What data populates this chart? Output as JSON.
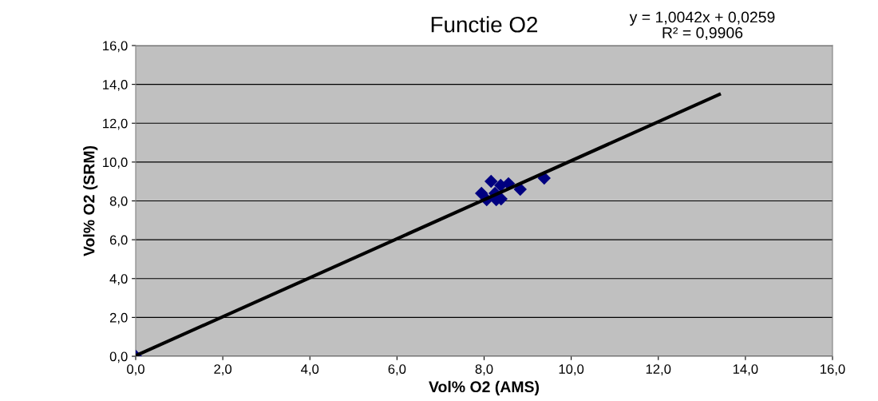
{
  "chart_data": {
    "type": "scatter",
    "title": "Functie O2",
    "xlabel": "Vol% O2 (AMS)",
    "ylabel": "Vol% O2 (SRM)",
    "annotations": [
      "y = 1,0042x + 0,0259\nR² = 0,9906"
    ],
    "series": [
      {
        "color": "#000080",
        "marker": "diamond",
        "x": [
          0.0,
          8.16,
          7.94,
          8.38,
          8.56,
          8.83,
          9.38,
          8.06,
          8.28,
          8.39,
          8.25
        ],
        "values": [
          0.0,
          9.01,
          8.39,
          8.8,
          8.89,
          8.6,
          9.17,
          8.06,
          8.06,
          8.1,
          8.39
        ]
      },
      {
        "type": "line",
        "color": "#000000",
        "x": [
          0.0,
          13.4
        ],
        "values": [
          0.03,
          13.48
        ]
      }
    ],
    "xlim": [
      0,
      16
    ],
    "ylim": [
      0,
      16
    ],
    "xticks": [
      {
        "value": 0,
        "label": "0,0"
      },
      {
        "value": 2,
        "label": "2,0"
      },
      {
        "value": 4,
        "label": "4,0"
      },
      {
        "value": 6,
        "label": "6,0"
      },
      {
        "value": 8,
        "label": "8,0"
      },
      {
        "value": 10,
        "label": "10,0"
      },
      {
        "value": 12,
        "label": "12,0"
      },
      {
        "value": 14,
        "label": "14,0"
      },
      {
        "value": 16,
        "label": "16,0"
      }
    ],
    "yticks": [
      {
        "value": 0,
        "label": "0,0"
      },
      {
        "value": 2,
        "label": "2,0"
      },
      {
        "value": 4,
        "label": "4,0"
      },
      {
        "value": 6,
        "label": "6,0"
      },
      {
        "value": 8,
        "label": "8,0"
      },
      {
        "value": 10,
        "label": "10,0"
      },
      {
        "value": 12,
        "label": "12,0"
      },
      {
        "value": 14,
        "label": "14,0"
      },
      {
        "value": 16,
        "label": "16,0"
      }
    ],
    "grid": "y",
    "legend": false
  }
}
